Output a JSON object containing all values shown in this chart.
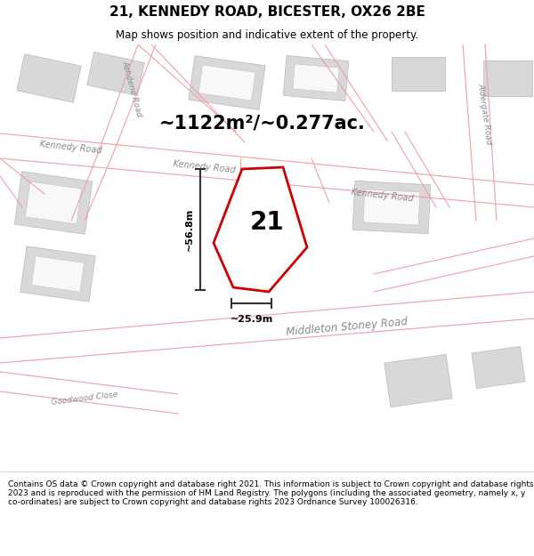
{
  "title": "21, KENNEDY ROAD, BICESTER, OX26 2BE",
  "subtitle": "Map shows position and indicative extent of the property.",
  "footer": "Contains OS data © Crown copyright and database right 2021. This information is subject to Crown copyright and database rights 2023 and is reproduced with the permission of HM Land Registry. The polygons (including the associated geometry, namely x, y co-ordinates) are subject to Crown copyright and database rights 2023 Ordnance Survey 100026316.",
  "area_label": "~1122m²/~0.277ac.",
  "number_label": "21",
  "height_label": "~56.8m",
  "width_label": "~25.9m",
  "map_bg": "#ffffff",
  "plot_edge_color": "#cc0000",
  "plot_fill": "#ffffff",
  "building_color": "#d8d8d8",
  "building_edge_color": "#b8b8b8",
  "road_line_color": "#f0a0a0",
  "road_label_color": "#888888",
  "dim_line_color": "#333333",
  "title_fontsize": 11,
  "subtitle_fontsize": 8.5,
  "footer_fontsize": 6.5,
  "area_fontsize": 15,
  "number_fontsize": 20,
  "dim_fontsize": 8,
  "road_name_fontsize": 7
}
